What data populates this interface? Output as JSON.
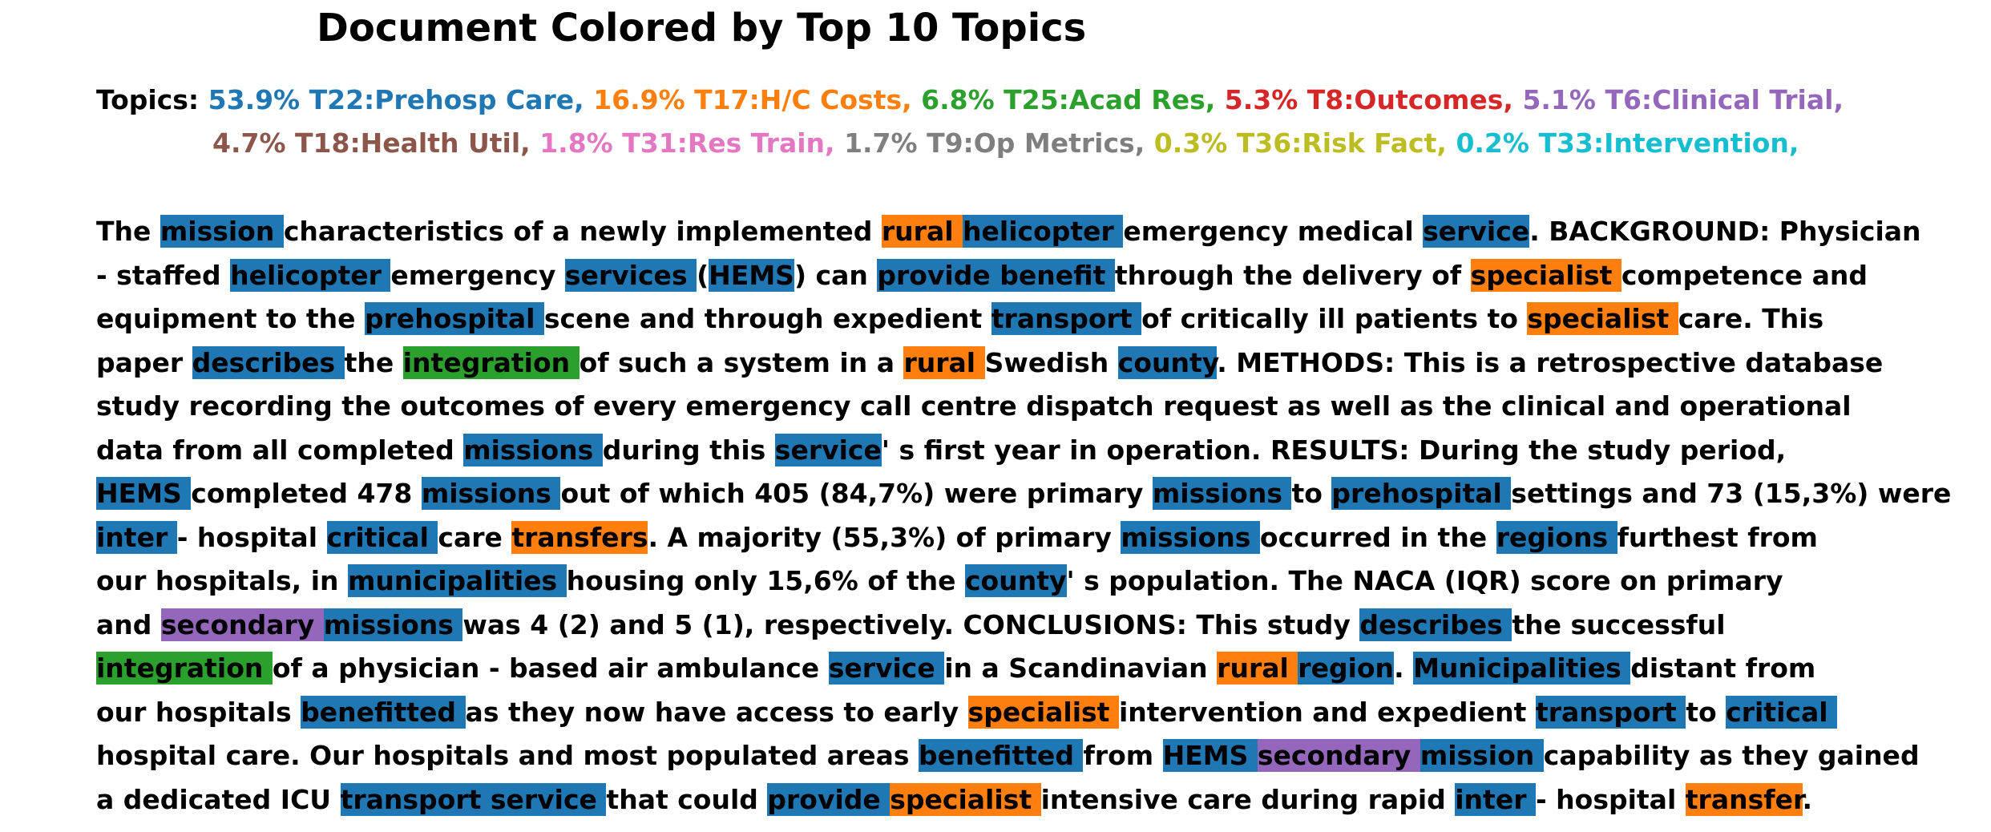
{
  "title": "Document Colored by Top 10 Topics",
  "legend": {
    "prefix": "Topics:",
    "lines": [
      [
        {
          "text": "53.9% T22:Prehosp Care,",
          "color": "#1f77b4"
        },
        {
          "text": "16.9% T17:H/C Costs,",
          "color": "#ff7f0e"
        },
        {
          "text": "6.8% T25:Acad Res,",
          "color": "#2ca02c"
        },
        {
          "text": "5.3% T8:Outcomes,",
          "color": "#d62728"
        },
        {
          "text": "5.1% T6:Clinical Trial,",
          "color": "#9467bd"
        }
      ],
      [
        {
          "text": "4.7% T18:Health Util,",
          "color": "#8c564b"
        },
        {
          "text": "1.8% T31:Res Train,",
          "color": "#e377c2"
        },
        {
          "text": "1.7% T9:Op Metrics,",
          "color": "#7f7f7f"
        },
        {
          "text": "0.3% T36:Risk Fact,",
          "color": "#bcbd22"
        },
        {
          "text": "0.2% T33:Intervention,",
          "color": "#17becf"
        }
      ]
    ]
  },
  "document": {
    "lines": [
      [
        [
          "The "
        ],
        [
          "mission ",
          "#1f77b4"
        ],
        [
          "characteristics of a newly implemented "
        ],
        [
          "rural ",
          "#ff7f0e"
        ],
        [
          "helicopter ",
          "#1f77b4"
        ],
        [
          "emergency medical "
        ],
        [
          "service",
          "#1f77b4"
        ],
        [
          ". BACKGROUND: Physician"
        ]
      ],
      [
        [
          "- staffed "
        ],
        [
          "helicopter ",
          "#1f77b4"
        ],
        [
          "emergency "
        ],
        [
          "services ",
          "#1f77b4"
        ],
        [
          "("
        ],
        [
          "HEMS",
          "#1f77b4"
        ],
        [
          ") can "
        ],
        [
          "provide benefit ",
          "#1f77b4"
        ],
        [
          "through the delivery of "
        ],
        [
          "specialist ",
          "#ff7f0e"
        ],
        [
          "competence and"
        ]
      ],
      [
        [
          "equipment to the "
        ],
        [
          "prehospital ",
          "#1f77b4"
        ],
        [
          "scene and through expedient "
        ],
        [
          "transport ",
          "#1f77b4"
        ],
        [
          "of critically ill patients to "
        ],
        [
          "specialist ",
          "#ff7f0e"
        ],
        [
          "care. This"
        ]
      ],
      [
        [
          "paper "
        ],
        [
          "describes ",
          "#1f77b4"
        ],
        [
          "the "
        ],
        [
          "integration ",
          "#2ca02c"
        ],
        [
          "of such a system in a "
        ],
        [
          "rural ",
          "#ff7f0e"
        ],
        [
          "Swedish "
        ],
        [
          "county",
          "#1f77b4"
        ],
        [
          ". METHODS: This is a retrospective database"
        ]
      ],
      [
        [
          "study recording the outcomes of every emergency call centre dispatch request as well as the clinical and operational"
        ]
      ],
      [
        [
          "data from all completed "
        ],
        [
          "missions ",
          "#1f77b4"
        ],
        [
          "during this "
        ],
        [
          "service",
          "#1f77b4"
        ],
        [
          "' s first year in operation. RESULTS: During the study period,"
        ]
      ],
      [
        [
          "HEMS ",
          "#1f77b4"
        ],
        [
          "completed 478 "
        ],
        [
          "missions ",
          "#1f77b4"
        ],
        [
          "out of which 405 (84,7%) were primary "
        ],
        [
          "missions ",
          "#1f77b4"
        ],
        [
          "to "
        ],
        [
          "prehospital ",
          "#1f77b4"
        ],
        [
          "settings and 73 (15,3%) were"
        ]
      ],
      [
        [
          "inter ",
          "#1f77b4"
        ],
        [
          "- hospital "
        ],
        [
          "critical ",
          "#1f77b4"
        ],
        [
          "care "
        ],
        [
          "transfers",
          "#ff7f0e"
        ],
        [
          ". A majority (55,3%) of primary "
        ],
        [
          "missions ",
          "#1f77b4"
        ],
        [
          "occurred in the "
        ],
        [
          "regions ",
          "#1f77b4"
        ],
        [
          "furthest from"
        ]
      ],
      [
        [
          "our hospitals, in "
        ],
        [
          "municipalities ",
          "#1f77b4"
        ],
        [
          "housing only 15,6% of the "
        ],
        [
          "county",
          "#1f77b4"
        ],
        [
          "' s population. The NACA (IQR) score on primary"
        ]
      ],
      [
        [
          "and "
        ],
        [
          "secondary ",
          "#9467bd"
        ],
        [
          "missions ",
          "#1f77b4"
        ],
        [
          "was 4 (2) and 5 (1), respectively. CONCLUSIONS: This study "
        ],
        [
          "describes ",
          "#1f77b4"
        ],
        [
          "the successful"
        ]
      ],
      [
        [
          "integration ",
          "#2ca02c"
        ],
        [
          "of a physician - based air ambulance "
        ],
        [
          "service ",
          "#1f77b4"
        ],
        [
          "in a Scandinavian "
        ],
        [
          "rural ",
          "#ff7f0e"
        ],
        [
          "region",
          "#1f77b4"
        ],
        [
          ". "
        ],
        [
          "Municipalities ",
          "#1f77b4"
        ],
        [
          "distant from"
        ]
      ],
      [
        [
          "our hospitals "
        ],
        [
          "benefitted ",
          "#1f77b4"
        ],
        [
          "as they now have access to early "
        ],
        [
          "specialist ",
          "#ff7f0e"
        ],
        [
          "intervention and expedient "
        ],
        [
          "transport ",
          "#1f77b4"
        ],
        [
          "to "
        ],
        [
          "critical ",
          "#1f77b4"
        ]
      ],
      [
        [
          "hospital care. Our hospitals and most populated areas "
        ],
        [
          "benefitted ",
          "#1f77b4"
        ],
        [
          "from "
        ],
        [
          "HEMS ",
          "#1f77b4"
        ],
        [
          "secondary ",
          "#9467bd"
        ],
        [
          "mission ",
          "#1f77b4"
        ],
        [
          "capability as they gained"
        ]
      ],
      [
        [
          "a dedicated ICU "
        ],
        [
          "transport service ",
          "#1f77b4"
        ],
        [
          "that could "
        ],
        [
          "provide ",
          "#1f77b4"
        ],
        [
          "specialist ",
          "#ff7f0e"
        ],
        [
          "intensive care during rapid "
        ],
        [
          "inter ",
          "#1f77b4"
        ],
        [
          "- hospital "
        ],
        [
          "transfer",
          "#ff7f0e"
        ],
        [
          "."
        ]
      ]
    ]
  }
}
